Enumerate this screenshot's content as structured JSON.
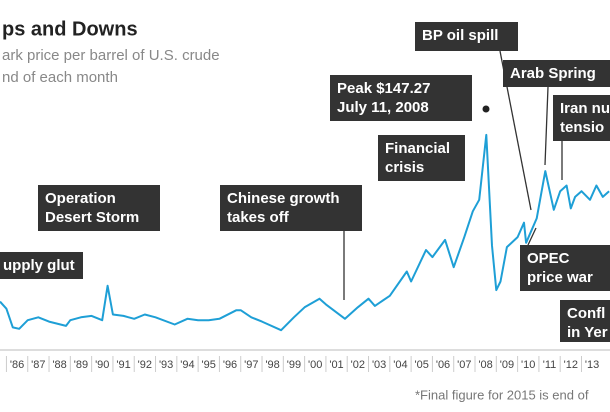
{
  "chart_data": {
    "type": "line",
    "title": "ps and Downs",
    "subtitle": [
      "ark price per barrel of U.S. crude",
      "nd of each month"
    ],
    "color": "#1e9fd6",
    "x": [
      1985.7,
      1986.0,
      1986.3,
      1986.6,
      1987.0,
      1987.5,
      1988.0,
      1988.8,
      1989.0,
      1989.5,
      1990.0,
      1990.5,
      1990.75,
      1991.0,
      1991.5,
      1992.0,
      1992.5,
      1993.0,
      1993.9,
      1994.5,
      1995.0,
      1995.5,
      1996.0,
      1996.8,
      1997.0,
      1997.5,
      1998.0,
      1998.9,
      1999.5,
      2000.0,
      2000.7,
      2001.0,
      2001.9,
      2002.5,
      2003.0,
      2003.3,
      2004.0,
      2004.8,
      2005.0,
      2005.7,
      2006.0,
      2006.6,
      2007.0,
      2007.5,
      2007.9,
      2008.2,
      2008.53,
      2008.8,
      2009.0,
      2009.2,
      2009.5,
      2010.0,
      2010.3,
      2010.4,
      2010.9,
      2011.3,
      2011.7,
      2012.0,
      2012.3,
      2012.5,
      2012.7,
      2013.0,
      2013.4,
      2013.7,
      2014.0,
      2014.3
    ],
    "values": [
      31,
      26,
      13,
      12,
      18,
      20,
      17,
      14,
      18,
      20,
      21,
      18,
      42,
      22,
      21,
      19,
      22,
      20,
      15,
      19,
      18,
      18,
      19,
      25,
      25,
      20,
      17,
      11,
      20,
      27,
      33,
      29,
      19,
      27,
      33,
      28,
      35,
      52,
      45,
      67,
      62,
      74,
      55,
      76,
      94,
      102,
      147.27,
      70,
      39,
      45,
      69,
      76,
      86,
      72,
      89,
      122,
      95,
      108,
      112,
      96,
      104,
      108,
      102,
      112,
      104,
      108
    ],
    "xlim": [
      1985.7,
      2014.34
    ],
    "ylim": [
      0,
      150
    ],
    "xticks": [
      {
        "value": 1986.5,
        "label": "'86"
      },
      {
        "value": 1987.5,
        "label": "'87"
      },
      {
        "value": 1988.5,
        "label": "'88"
      },
      {
        "value": 1989.5,
        "label": "'89"
      },
      {
        "value": 1990.5,
        "label": "'90"
      },
      {
        "value": 1991.5,
        "label": "'91"
      },
      {
        "value": 1992.5,
        "label": "'92"
      },
      {
        "value": 1993.5,
        "label": "'93"
      },
      {
        "value": 1994.5,
        "label": "'94"
      },
      {
        "value": 1995.5,
        "label": "'95"
      },
      {
        "value": 1996.5,
        "label": "'96"
      },
      {
        "value": 1997.5,
        "label": "'97"
      },
      {
        "value": 1998.5,
        "label": "'98"
      },
      {
        "value": 1999.5,
        "label": "'99"
      },
      {
        "value": 2000.5,
        "label": "'00"
      },
      {
        "value": 2001.5,
        "label": "'01"
      },
      {
        "value": 2002.5,
        "label": "'02"
      },
      {
        "value": 2003.5,
        "label": "'03"
      },
      {
        "value": 2004.5,
        "label": "'04"
      },
      {
        "value": 2005.5,
        "label": "'05"
      },
      {
        "value": 2006.5,
        "label": "'06"
      },
      {
        "value": 2007.5,
        "label": "'07"
      },
      {
        "value": 2008.5,
        "label": "'08"
      },
      {
        "value": 2009.5,
        "label": "'09"
      },
      {
        "value": 2010.5,
        "label": "'10"
      },
      {
        "value": 2011.5,
        "label": "'11"
      },
      {
        "value": 2012.5,
        "label": "'12"
      },
      {
        "value": 2013.5,
        "label": "'13"
      }
    ],
    "annotations": [
      {
        "lines": [
          "upply glut"
        ]
      },
      {
        "lines": [
          "Operation",
          "Desert Storm"
        ]
      },
      {
        "lines": [
          "Chinese growth",
          "takes off"
        ]
      },
      {
        "lines": [
          "Peak $147.27",
          "July 11, 2008"
        ]
      },
      {
        "lines": [
          "Financial",
          "crisis"
        ]
      },
      {
        "lines": [
          "BP oil spill"
        ]
      },
      {
        "lines": [
          "Arab Spring"
        ]
      },
      {
        "lines": [
          "Iran nu",
          "tensio"
        ]
      },
      {
        "lines": [
          "OPEC",
          "price war"
        ]
      },
      {
        "lines": [
          "Confl",
          "in Yer"
        ]
      }
    ],
    "footnote": "*Final figure for 2015 is end of"
  }
}
